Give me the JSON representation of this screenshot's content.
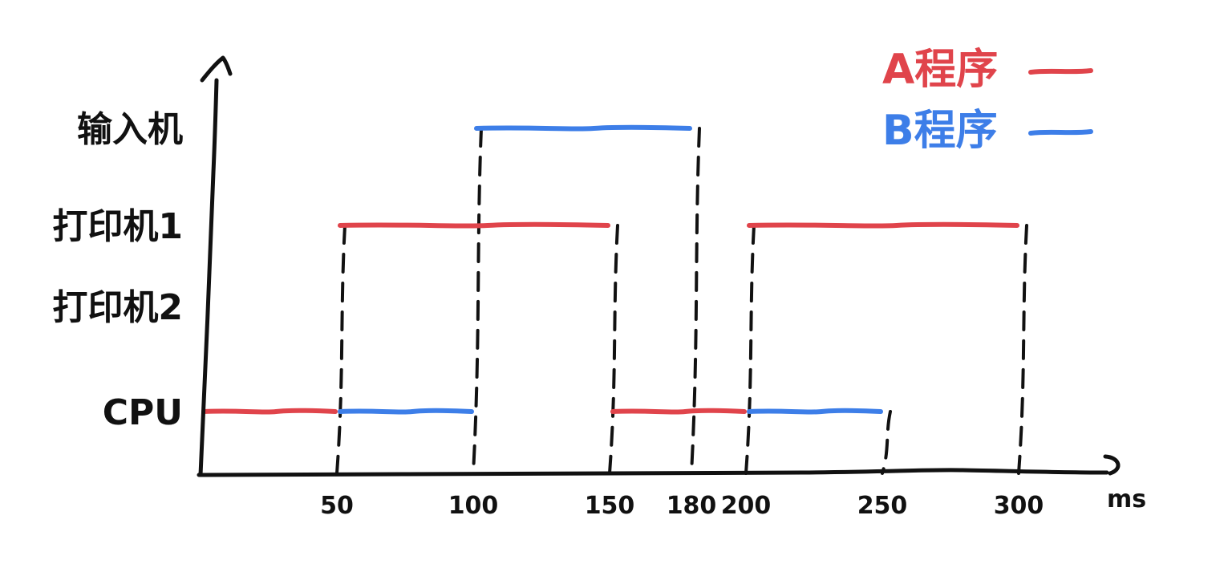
{
  "chart_data": {
    "type": "timeline",
    "x_unit": "ms",
    "x_ticks": [
      50,
      100,
      150,
      180,
      200,
      250,
      300
    ],
    "xlim": [
      0,
      340
    ],
    "rows": [
      "输入机",
      "打印机1",
      "打印机2",
      "CPU"
    ],
    "series": [
      {
        "name": "A程序",
        "color": "#e0444b",
        "segments": [
          {
            "row": "CPU",
            "start": 0,
            "end": 50
          },
          {
            "row": "打印机1",
            "start": 50,
            "end": 150
          },
          {
            "row": "CPU",
            "start": 150,
            "end": 200
          },
          {
            "row": "打印机1",
            "start": 200,
            "end": 300
          }
        ]
      },
      {
        "name": "B程序",
        "color": "#3d7ee8",
        "segments": [
          {
            "row": "CPU",
            "start": 50,
            "end": 100
          },
          {
            "row": "输入机",
            "start": 100,
            "end": 180
          },
          {
            "row": "CPU",
            "start": 200,
            "end": 250
          }
        ]
      }
    ],
    "guides": [
      {
        "x": 50,
        "from_row": "打印机1"
      },
      {
        "x": 100,
        "from_row": "输入机"
      },
      {
        "x": 150,
        "from_row": "打印机1"
      },
      {
        "x": 180,
        "from_row": "输入机"
      },
      {
        "x": 200,
        "from_row": "打印机1"
      },
      {
        "x": 250,
        "from_row": "CPU"
      },
      {
        "x": 300,
        "from_row": "打印机1"
      }
    ],
    "legend": {
      "placement": "top-right",
      "entries": [
        "A程序",
        "B程序"
      ]
    }
  }
}
